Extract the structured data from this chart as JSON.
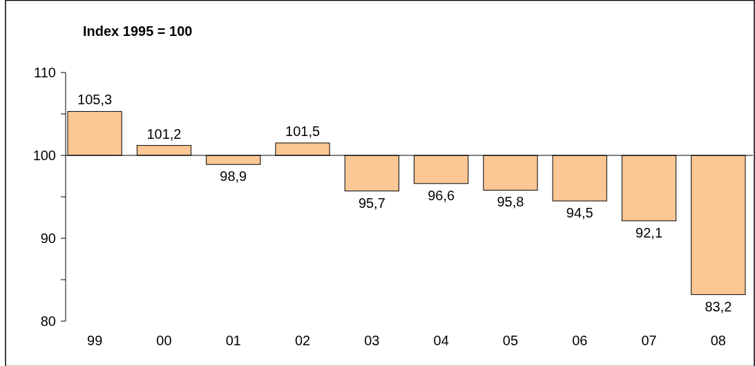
{
  "chart_data": {
    "type": "bar",
    "title": "Index 1995 = 100",
    "categories": [
      "99",
      "00",
      "01",
      "02",
      "03",
      "04",
      "05",
      "06",
      "07",
      "08"
    ],
    "base": [
      100,
      100,
      100,
      100,
      100,
      100,
      100,
      100,
      100,
      100
    ],
    "values": [
      5.3,
      1.2,
      -1.1,
      1.5,
      -4.3,
      -3.4,
      -4.2,
      -5.5,
      -7.9,
      -16.8
    ],
    "value_labels": [
      "105,3",
      "101,2",
      "98,9",
      "101,5",
      "95,7",
      "96,6",
      "95,8",
      "94,5",
      "92,1",
      "83,2"
    ],
    "color": "#fdc795",
    "ylim": [
      80,
      110
    ],
    "yticks": [
      80,
      {
        "value": 85,
        "label": null
      },
      90,
      {
        "value": 95,
        "label": null
      },
      100,
      {
        "value": 105,
        "label": null
      },
      110
    ],
    "ref_lines": [
      {
        "axis": "y",
        "value": 100
      }
    ]
  }
}
